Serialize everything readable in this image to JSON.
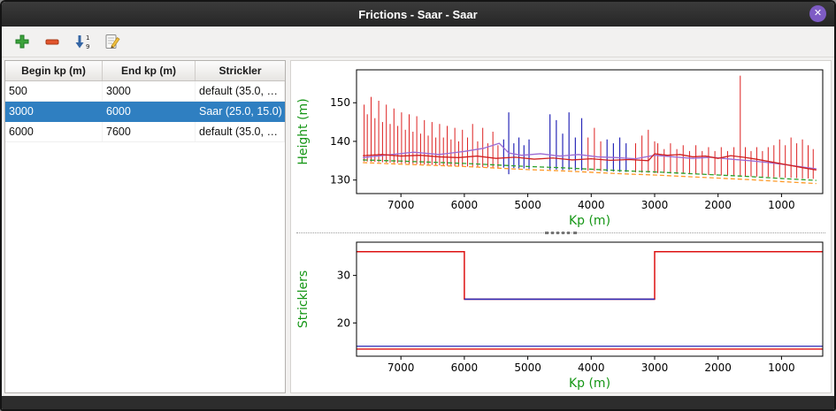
{
  "window": {
    "title": "Frictions - Saar - Saar",
    "close_glyph": "✕"
  },
  "toolbar": {
    "buttons": [
      {
        "icon": "add"
      },
      {
        "icon": "remove"
      },
      {
        "icon": "sort-1-9"
      },
      {
        "icon": "edit"
      }
    ]
  },
  "table": {
    "columns": [
      "Begin kp (m)",
      "End kp (m)",
      "Strickler"
    ],
    "rows": [
      {
        "begin": "500",
        "end": "3000",
        "strickler": "default (35.0, …",
        "selected": false
      },
      {
        "begin": "3000",
        "end": "6000",
        "strickler": "Saar (25.0, 15.0)",
        "selected": true
      },
      {
        "begin": "6000",
        "end": "7600",
        "strickler": "default (35.0, …",
        "selected": false
      }
    ]
  },
  "colors": {
    "selection_blue": "#2f7fc1",
    "axis_label_green": "#159615",
    "titlebar_dark": "#2d2d2d",
    "close_button_purple": "#7e5cc5"
  },
  "chart_data": [
    {
      "type": "line",
      "title": "",
      "xlabel": "Kp (m)",
      "ylabel": "Height (m)",
      "label_color": "#159615",
      "xlim": [
        7700,
        350
      ],
      "ylim": [
        126.5,
        158.5
      ],
      "xticks": [
        7000,
        6000,
        5000,
        4000,
        3000,
        2000,
        1000
      ],
      "yticks": [
        130,
        140,
        150
      ],
      "grid": false,
      "legend": "none",
      "series": [
        {
          "name": "cross-sections-red",
          "type": "vlines",
          "color": "#dd2020",
          "width": 1,
          "points": [
            [
              7580,
              134.8,
              149.5
            ],
            [
              7530,
              134.8,
              147
            ],
            [
              7470,
              134.7,
              151.5
            ],
            [
              7410,
              134.7,
              146
            ],
            [
              7350,
              134.6,
              150.5
            ],
            [
              7290,
              134.6,
              145
            ],
            [
              7230,
              134.5,
              149.5
            ],
            [
              7170,
              134.5,
              144.5
            ],
            [
              7110,
              134.4,
              148.5
            ],
            [
              7050,
              134.4,
              144
            ],
            [
              6990,
              134.3,
              147.5
            ],
            [
              6930,
              134.3,
              143
            ],
            [
              6870,
              134.2,
              147
            ],
            [
              6810,
              134.2,
              142.5
            ],
            [
              6750,
              134.1,
              146.5
            ],
            [
              6690,
              134.1,
              142
            ],
            [
              6630,
              134.0,
              145.5
            ],
            [
              6570,
              134.0,
              141.5
            ],
            [
              6510,
              133.9,
              145
            ],
            [
              6450,
              133.9,
              141
            ],
            [
              6390,
              133.8,
              144.5
            ],
            [
              6330,
              133.8,
              141
            ],
            [
              6270,
              133.7,
              144
            ],
            [
              6210,
              133.7,
              140.5
            ],
            [
              6150,
              133.6,
              143.5
            ],
            [
              6090,
              133.6,
              140
            ],
            [
              6030,
              133.5,
              143
            ],
            [
              5950,
              133.5,
              141
            ],
            [
              5870,
              133.4,
              144.5
            ],
            [
              5790,
              133.4,
              140
            ],
            [
              5710,
              133.3,
              143.5
            ],
            [
              5630,
              133.3,
              139.5
            ],
            [
              5550,
              133.2,
              142.5
            ],
            [
              5470,
              133.2,
              139
            ],
            [
              4050,
              132.4,
              141
            ],
            [
              3950,
              132.4,
              143.5
            ],
            [
              3850,
              132.3,
              140
            ],
            [
              3300,
              132.0,
              139.5
            ],
            [
              3200,
              131.9,
              141.5
            ],
            [
              3100,
              131.9,
              143
            ],
            [
              3000,
              131.8,
              140
            ],
            [
              2950,
              131.8,
              139.5
            ],
            [
              2850,
              131.8,
              138
            ],
            [
              2750,
              131.7,
              139.5
            ],
            [
              2650,
              131.6,
              138
            ],
            [
              2550,
              131.6,
              139
            ],
            [
              2450,
              131.5,
              137.5
            ],
            [
              2350,
              131.5,
              139
            ],
            [
              2250,
              131.4,
              137.5
            ],
            [
              2150,
              131.3,
              138.5
            ],
            [
              2050,
              131.3,
              137.5
            ],
            [
              1950,
              131.2,
              138.5
            ],
            [
              1850,
              131.2,
              137.5
            ],
            [
              1750,
              131.1,
              138.5
            ],
            [
              1650,
              131.0,
              157
            ],
            [
              1570,
              131.0,
              138.5
            ],
            [
              1480,
              130.9,
              137.5
            ],
            [
              1390,
              130.9,
              138.5
            ],
            [
              1300,
              130.8,
              137.5
            ],
            [
              1210,
              130.8,
              138.5
            ],
            [
              1120,
              130.7,
              139
            ],
            [
              1030,
              130.7,
              140.5
            ],
            [
              940,
              130.6,
              139
            ],
            [
              850,
              130.6,
              141
            ],
            [
              760,
              130.5,
              139.5
            ],
            [
              670,
              130.4,
              140.5
            ],
            [
              580,
              130.4,
              139
            ],
            [
              500,
              130.3,
              138
            ]
          ]
        },
        {
          "name": "cross-sections-blue",
          "type": "vlines",
          "color": "#2828b8",
          "width": 1.2,
          "points": [
            [
              5380,
              133.2,
              140.5
            ],
            [
              5300,
              131.5,
              147.5
            ],
            [
              5220,
              133.1,
              139.5
            ],
            [
              5140,
              133.0,
              141
            ],
            [
              5060,
              133.0,
              139
            ],
            [
              4980,
              132.9,
              140.5
            ],
            [
              4650,
              132.7,
              147
            ],
            [
              4550,
              132.7,
              145.5
            ],
            [
              4450,
              132.6,
              142
            ],
            [
              4350,
              132.6,
              147.5
            ],
            [
              4250,
              132.5,
              141
            ],
            [
              4150,
              132.5,
              146
            ],
            [
              3750,
              132.2,
              140.5
            ],
            [
              3650,
              132.2,
              139.5
            ],
            [
              3550,
              132.1,
              141
            ],
            [
              3450,
              132.1,
              139.5
            ]
          ]
        },
        {
          "name": "water-level-purple",
          "type": "line",
          "color": "#9b6bd3",
          "width": 1.3,
          "points": [
            [
              7600,
              135.8
            ],
            [
              7200,
              136.5
            ],
            [
              6800,
              137.2
            ],
            [
              6400,
              136.6
            ],
            [
              6000,
              137.4
            ],
            [
              5700,
              138.2
            ],
            [
              5450,
              139.5
            ],
            [
              5300,
              137.0
            ],
            [
              5100,
              136.4
            ],
            [
              4800,
              136.8
            ],
            [
              4500,
              136.2
            ],
            [
              4200,
              136.6
            ],
            [
              3900,
              136.0
            ],
            [
              3600,
              135.8
            ],
            [
              3300,
              135.5
            ],
            [
              3000,
              136.4
            ],
            [
              2700,
              136.0
            ],
            [
              2400,
              135.6
            ],
            [
              2100,
              135.9
            ],
            [
              1800,
              135.4
            ],
            [
              1500,
              135.0
            ],
            [
              1200,
              134.5
            ],
            [
              900,
              133.9
            ],
            [
              600,
              133.2
            ],
            [
              450,
              132.9
            ]
          ]
        },
        {
          "name": "water-level-red",
          "type": "line",
          "color": "#d02020",
          "width": 1.3,
          "points": [
            [
              7600,
              136.3
            ],
            [
              7300,
              136.6
            ],
            [
              7000,
              136.2
            ],
            [
              6700,
              136.4
            ],
            [
              6400,
              136.0
            ],
            [
              6100,
              135.8
            ],
            [
              5800,
              136.2
            ],
            [
              5500,
              135.6
            ],
            [
              5200,
              135.9
            ],
            [
              4900,
              135.4
            ],
            [
              4600,
              135.7
            ],
            [
              4300,
              135.2
            ],
            [
              4000,
              135.5
            ],
            [
              3700,
              135.1
            ],
            [
              3400,
              135.3
            ],
            [
              3100,
              135.0
            ],
            [
              3000,
              136.8
            ],
            [
              2800,
              136.4
            ],
            [
              2600,
              136.6
            ],
            [
              2400,
              136.0
            ],
            [
              2200,
              136.2
            ],
            [
              2000,
              135.6
            ],
            [
              1800,
              136.3
            ],
            [
              1600,
              135.9
            ],
            [
              1400,
              135.4
            ],
            [
              1200,
              134.8
            ],
            [
              1000,
              134.2
            ],
            [
              800,
              133.6
            ],
            [
              600,
              133.0
            ],
            [
              450,
              132.6
            ]
          ]
        },
        {
          "name": "bed-green-dashed",
          "type": "line",
          "dash": true,
          "color": "#2ca02c",
          "width": 1.3,
          "points": [
            [
              7600,
              135.2
            ],
            [
              7000,
              134.9
            ],
            [
              6500,
              134.6
            ],
            [
              6000,
              134.3
            ],
            [
              5500,
              133.9
            ],
            [
              5000,
              133.5
            ],
            [
              4500,
              133.2
            ],
            [
              4000,
              132.8
            ],
            [
              3500,
              132.4
            ],
            [
              3000,
              132.1
            ],
            [
              2500,
              131.7
            ],
            [
              2000,
              131.3
            ],
            [
              1500,
              130.9
            ],
            [
              1000,
              130.4
            ],
            [
              450,
              129.9
            ]
          ]
        },
        {
          "name": "bed-orange-dashed",
          "type": "line",
          "dash": true,
          "color": "#ff9a2a",
          "width": 1.3,
          "points": [
            [
              7600,
              134.5
            ],
            [
              7000,
              134.1
            ],
            [
              6500,
              133.8
            ],
            [
              6000,
              133.5
            ],
            [
              5500,
              133.1
            ],
            [
              5000,
              132.7
            ],
            [
              4500,
              132.4
            ],
            [
              4000,
              132.0
            ],
            [
              3500,
              131.6
            ],
            [
              3000,
              131.3
            ],
            [
              2500,
              130.9
            ],
            [
              2000,
              130.5
            ],
            [
              1500,
              130.1
            ],
            [
              1000,
              129.6
            ],
            [
              450,
              129.1
            ]
          ]
        }
      ]
    },
    {
      "type": "line",
      "title": "",
      "xlabel": "Kp (m)",
      "ylabel": "Stricklers",
      "label_color": "#159615",
      "xlim": [
        7700,
        350
      ],
      "ylim": [
        13,
        37
      ],
      "xticks": [
        7000,
        6000,
        5000,
        4000,
        3000,
        2000,
        1000
      ],
      "yticks": [
        20,
        30
      ],
      "grid": false,
      "legend": "none",
      "series": [
        {
          "name": "strickler-main-channel-red",
          "type": "line",
          "color": "#dd1111",
          "width": 1.5,
          "points": [
            [
              7700,
              35
            ],
            [
              6000,
              35
            ],
            [
              6000,
              25
            ],
            [
              3000,
              25
            ],
            [
              3000,
              35
            ],
            [
              350,
              35
            ]
          ]
        },
        {
          "name": "strickler-selected-segment-blue",
          "type": "line",
          "color": "#2828b8",
          "width": 1.5,
          "points": [
            [
              6000,
              25
            ],
            [
              3000,
              25
            ]
          ]
        },
        {
          "name": "strickler-floodplain-blue",
          "type": "line",
          "color": "#2828b8",
          "width": 1.3,
          "points": [
            [
              7700,
              15.1
            ],
            [
              350,
              15.1
            ]
          ]
        },
        {
          "name": "strickler-floodplain-red",
          "type": "line",
          "color": "#dd1111",
          "width": 1.3,
          "points": [
            [
              7700,
              14.5
            ],
            [
              350,
              14.5
            ]
          ]
        }
      ]
    }
  ]
}
